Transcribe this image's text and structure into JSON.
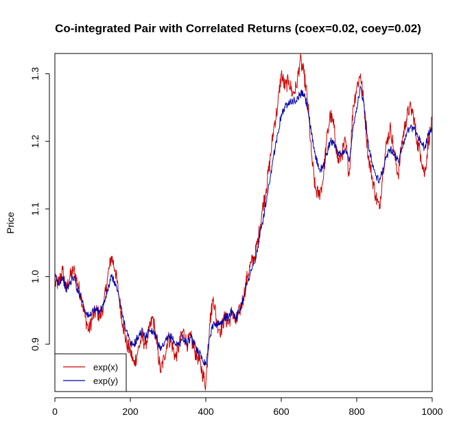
{
  "chart_data": {
    "type": "line",
    "title": "Co-integrated Pair with Correlated Returns (coex=0.02,  coey=0.02)",
    "xlabel": "",
    "ylabel": "Price",
    "xlim": [
      0,
      1000
    ],
    "ylim": [
      0.83,
      1.33
    ],
    "xticks": [
      0,
      200,
      400,
      600,
      800,
      1000
    ],
    "yticks": [
      0.9,
      1.0,
      1.1,
      1.2,
      1.3
    ],
    "ytick_labels": [
      "0.9",
      "1.0",
      "1.1",
      "1.2",
      "1.3"
    ],
    "grid": false,
    "legend_position": "bottom-left",
    "series": [
      {
        "name": "exp(x)",
        "color": "#cc0000",
        "points": [
          [
            0,
            0.99
          ],
          [
            10,
            0.99
          ],
          [
            20,
            1.01
          ],
          [
            30,
            0.98
          ],
          [
            40,
            1.0
          ],
          [
            50,
            1.01
          ],
          [
            60,
            0.99
          ],
          [
            70,
            0.97
          ],
          [
            80,
            0.94
          ],
          [
            90,
            0.92
          ],
          [
            100,
            0.94
          ],
          [
            110,
            0.95
          ],
          [
            120,
            0.94
          ],
          [
            130,
            0.96
          ],
          [
            140,
            1.0
          ],
          [
            150,
            1.03
          ],
          [
            160,
            1.01
          ],
          [
            170,
            0.97
          ],
          [
            180,
            0.93
          ],
          [
            190,
            0.9
          ],
          [
            200,
            0.89
          ],
          [
            210,
            0.87
          ],
          [
            220,
            0.89
          ],
          [
            230,
            0.91
          ],
          [
            240,
            0.9
          ],
          [
            250,
            0.92
          ],
          [
            260,
            0.94
          ],
          [
            270,
            0.9
          ],
          [
            280,
            0.86
          ],
          [
            290,
            0.88
          ],
          [
            300,
            0.91
          ],
          [
            310,
            0.9
          ],
          [
            320,
            0.88
          ],
          [
            330,
            0.9
          ],
          [
            340,
            0.92
          ],
          [
            350,
            0.9
          ],
          [
            360,
            0.91
          ],
          [
            370,
            0.89
          ],
          [
            380,
            0.88
          ],
          [
            390,
            0.86
          ],
          [
            400,
            0.84
          ],
          [
            410,
            0.93
          ],
          [
            420,
            0.97
          ],
          [
            430,
            0.93
          ],
          [
            440,
            0.92
          ],
          [
            450,
            0.94
          ],
          [
            460,
            0.93
          ],
          [
            470,
            0.95
          ],
          [
            480,
            0.93
          ],
          [
            490,
            0.95
          ],
          [
            500,
            0.97
          ],
          [
            510,
            1.0
          ],
          [
            520,
            1.02
          ],
          [
            530,
            1.03
          ],
          [
            540,
            1.06
          ],
          [
            550,
            1.1
          ],
          [
            560,
            1.13
          ],
          [
            570,
            1.17
          ],
          [
            580,
            1.22
          ],
          [
            590,
            1.25
          ],
          [
            600,
            1.3
          ],
          [
            610,
            1.28
          ],
          [
            620,
            1.29
          ],
          [
            630,
            1.27
          ],
          [
            640,
            1.28
          ],
          [
            650,
            1.32
          ],
          [
            660,
            1.3
          ],
          [
            670,
            1.26
          ],
          [
            680,
            1.18
          ],
          [
            690,
            1.13
          ],
          [
            700,
            1.12
          ],
          [
            710,
            1.14
          ],
          [
            720,
            1.2
          ],
          [
            730,
            1.24
          ],
          [
            740,
            1.22
          ],
          [
            750,
            1.17
          ],
          [
            760,
            1.18
          ],
          [
            770,
            1.2
          ],
          [
            780,
            1.15
          ],
          [
            790,
            1.25
          ],
          [
            800,
            1.28
          ],
          [
            810,
            1.3
          ],
          [
            820,
            1.25
          ],
          [
            830,
            1.18
          ],
          [
            840,
            1.15
          ],
          [
            850,
            1.12
          ],
          [
            860,
            1.1
          ],
          [
            870,
            1.16
          ],
          [
            880,
            1.2
          ],
          [
            890,
            1.22
          ],
          [
            900,
            1.18
          ],
          [
            910,
            1.15
          ],
          [
            920,
            1.2
          ],
          [
            930,
            1.23
          ],
          [
            940,
            1.25
          ],
          [
            950,
            1.24
          ],
          [
            960,
            1.2
          ],
          [
            970,
            1.18
          ],
          [
            980,
            1.15
          ],
          [
            990,
            1.2
          ],
          [
            1000,
            1.23
          ]
        ]
      },
      {
        "name": "exp(y)",
        "color": "#0000aa",
        "points": [
          [
            0,
            1.0
          ],
          [
            10,
            0.99
          ],
          [
            20,
            1.0
          ],
          [
            30,
            0.98
          ],
          [
            40,
            0.99
          ],
          [
            50,
            1.0
          ],
          [
            60,
            0.98
          ],
          [
            70,
            0.97
          ],
          [
            80,
            0.95
          ],
          [
            90,
            0.94
          ],
          [
            100,
            0.95
          ],
          [
            110,
            0.95
          ],
          [
            120,
            0.95
          ],
          [
            130,
            0.96
          ],
          [
            140,
            0.98
          ],
          [
            150,
            1.0
          ],
          [
            160,
            0.99
          ],
          [
            170,
            0.97
          ],
          [
            180,
            0.94
          ],
          [
            190,
            0.92
          ],
          [
            200,
            0.9
          ],
          [
            210,
            0.9
          ],
          [
            220,
            0.91
          ],
          [
            230,
            0.92
          ],
          [
            240,
            0.91
          ],
          [
            250,
            0.92
          ],
          [
            260,
            0.92
          ],
          [
            270,
            0.91
          ],
          [
            280,
            0.89
          ],
          [
            290,
            0.9
          ],
          [
            300,
            0.91
          ],
          [
            310,
            0.91
          ],
          [
            320,
            0.9
          ],
          [
            330,
            0.9
          ],
          [
            340,
            0.91
          ],
          [
            350,
            0.9
          ],
          [
            360,
            0.91
          ],
          [
            370,
            0.9
          ],
          [
            380,
            0.89
          ],
          [
            390,
            0.88
          ],
          [
            400,
            0.87
          ],
          [
            410,
            0.91
          ],
          [
            420,
            0.93
          ],
          [
            430,
            0.93
          ],
          [
            440,
            0.93
          ],
          [
            450,
            0.94
          ],
          [
            460,
            0.94
          ],
          [
            470,
            0.95
          ],
          [
            480,
            0.94
          ],
          [
            490,
            0.95
          ],
          [
            500,
            0.97
          ],
          [
            510,
            0.99
          ],
          [
            520,
            1.01
          ],
          [
            530,
            1.02
          ],
          [
            540,
            1.05
          ],
          [
            550,
            1.08
          ],
          [
            560,
            1.11
          ],
          [
            570,
            1.14
          ],
          [
            580,
            1.18
          ],
          [
            590,
            1.21
          ],
          [
            600,
            1.24
          ],
          [
            610,
            1.25
          ],
          [
            620,
            1.26
          ],
          [
            630,
            1.26
          ],
          [
            640,
            1.26
          ],
          [
            650,
            1.27
          ],
          [
            660,
            1.27
          ],
          [
            670,
            1.25
          ],
          [
            680,
            1.21
          ],
          [
            690,
            1.18
          ],
          [
            700,
            1.16
          ],
          [
            710,
            1.16
          ],
          [
            720,
            1.18
          ],
          [
            730,
            1.2
          ],
          [
            740,
            1.2
          ],
          [
            750,
            1.18
          ],
          [
            760,
            1.18
          ],
          [
            770,
            1.19
          ],
          [
            780,
            1.17
          ],
          [
            790,
            1.22
          ],
          [
            800,
            1.25
          ],
          [
            810,
            1.28
          ],
          [
            820,
            1.25
          ],
          [
            830,
            1.2
          ],
          [
            840,
            1.17
          ],
          [
            850,
            1.15
          ],
          [
            860,
            1.14
          ],
          [
            870,
            1.16
          ],
          [
            880,
            1.18
          ],
          [
            890,
            1.19
          ],
          [
            900,
            1.18
          ],
          [
            910,
            1.17
          ],
          [
            920,
            1.19
          ],
          [
            930,
            1.21
          ],
          [
            940,
            1.22
          ],
          [
            950,
            1.22
          ],
          [
            960,
            1.21
          ],
          [
            970,
            1.2
          ],
          [
            980,
            1.19
          ],
          [
            990,
            1.21
          ],
          [
            1000,
            1.22
          ]
        ]
      }
    ]
  }
}
